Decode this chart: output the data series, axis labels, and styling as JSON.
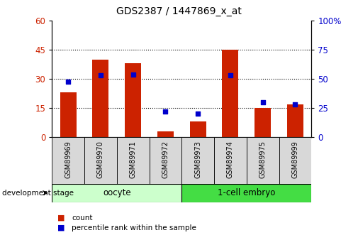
{
  "title": "GDS2387 / 1447869_x_at",
  "samples": [
    "GSM89969",
    "GSM89970",
    "GSM89971",
    "GSM89972",
    "GSM89973",
    "GSM89974",
    "GSM89975",
    "GSM89999"
  ],
  "counts": [
    23,
    40,
    38,
    3,
    8,
    45,
    15,
    17
  ],
  "percentiles": [
    48,
    53,
    54,
    22,
    20,
    53,
    30,
    28
  ],
  "left_ylim": [
    0,
    60
  ],
  "right_ylim": [
    0,
    100
  ],
  "left_yticks": [
    0,
    15,
    30,
    45,
    60
  ],
  "right_yticks": [
    0,
    25,
    50,
    75,
    100
  ],
  "bar_color": "#cc2200",
  "dot_color": "#0000cc",
  "grid_yticks": [
    15,
    30,
    45
  ],
  "n_oocyte": 4,
  "n_embryo": 4,
  "oocyte_label": "oocyte",
  "embryo_label": "1-cell embryo",
  "oocyte_color": "#ccffcc",
  "embryo_color": "#44dd44",
  "stage_label": "development stage",
  "legend_count": "count",
  "legend_pct": "percentile rank within the sample",
  "bg_color": "#ffffff",
  "plot_bg": "#ffffff",
  "tick_label_color_left": "#cc2200",
  "tick_label_color_right": "#0000cc",
  "bar_width": 0.5,
  "sample_box_color": "#d8d8d8"
}
